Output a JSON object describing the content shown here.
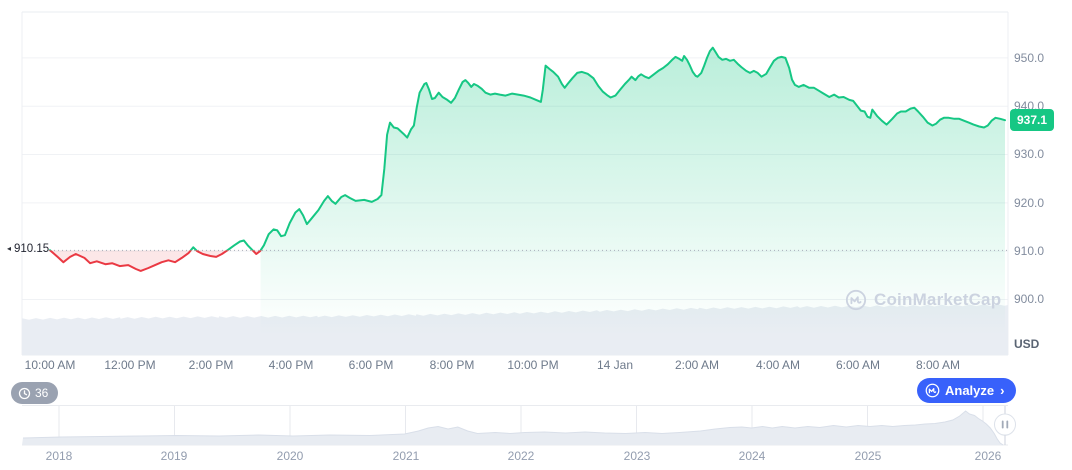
{
  "y_axis": {
    "ticks": [
      "950.0",
      "940.0",
      "930.0",
      "920.0",
      "910.0",
      "900.0"
    ],
    "unit_label": "USD",
    "current_price_label": "937.1",
    "open_price_label": "910.15"
  },
  "x_axis": {
    "ticks": [
      "10:00 AM",
      "12:00 PM",
      "2:00 PM",
      "4:00 PM",
      "6:00 PM",
      "8:00 PM",
      "10:00 PM",
      "14 Jan",
      "2:00 AM",
      "4:00 AM",
      "6:00 AM",
      "8:00 AM"
    ]
  },
  "navigator": {
    "years": [
      "2018",
      "2019",
      "2020",
      "2021",
      "2022",
      "2023",
      "2024",
      "2025",
      "2026"
    ]
  },
  "toolbar": {
    "history_count": "36",
    "analyze_label": "Analyze"
  },
  "watermark": {
    "text": "CoinMarketCap"
  },
  "icons": {
    "open_marker": "◂",
    "analyze_chevron": "›",
    "history_icon_name": "history-clock-icon",
    "cmc_logo_name": "coinmarketcap-logo-icon",
    "handle_icon_name": "drag-handle-icon"
  },
  "colors": {
    "up": "#16c784",
    "down": "#ea3943",
    "accent_blue": "#3861fb",
    "badge_gray": "#818b9e"
  },
  "chart_data": {
    "type": "line",
    "title": "",
    "ylabel": "USD",
    "ylim": [
      888.5,
      959.5
    ],
    "y_tick_values": [
      950,
      940,
      930,
      920,
      910,
      900
    ],
    "open_price": 910.15,
    "current_price": 937.1,
    "grid": "horizontal-only",
    "legend": "none",
    "x_ticks": [
      "10:00 AM",
      "12:00 PM",
      "2:00 PM",
      "4:00 PM",
      "6:00 PM",
      "8:00 PM",
      "10:00 PM",
      "14 Jan",
      "2:00 AM",
      "4:00 AM",
      "6:00 AM",
      "8:00 AM"
    ],
    "x_unit": "fraction_of_visible_24h_range",
    "series": [
      {
        "name": "price_usd",
        "points": [
          [
            0.0,
            910.2
          ],
          [
            0.008,
            908.8
          ],
          [
            0.014,
            907.7
          ],
          [
            0.021,
            908.8
          ],
          [
            0.027,
            909.4
          ],
          [
            0.036,
            908.6
          ],
          [
            0.042,
            907.5
          ],
          [
            0.049,
            907.9
          ],
          [
            0.058,
            907.3
          ],
          [
            0.065,
            907.5
          ],
          [
            0.073,
            906.9
          ],
          [
            0.082,
            907.1
          ],
          [
            0.09,
            906.3
          ],
          [
            0.095,
            905.9
          ],
          [
            0.103,
            906.5
          ],
          [
            0.11,
            907.1
          ],
          [
            0.117,
            907.7
          ],
          [
            0.124,
            908.1
          ],
          [
            0.131,
            907.7
          ],
          [
            0.138,
            908.6
          ],
          [
            0.145,
            909.6
          ],
          [
            0.15,
            910.8
          ],
          [
            0.154,
            910.0
          ],
          [
            0.16,
            909.4
          ],
          [
            0.168,
            909.0
          ],
          [
            0.174,
            908.8
          ],
          [
            0.18,
            909.4
          ],
          [
            0.186,
            910.2
          ],
          [
            0.193,
            911.2
          ],
          [
            0.199,
            912.0
          ],
          [
            0.203,
            912.2
          ],
          [
            0.207,
            911.2
          ],
          [
            0.212,
            910.2
          ],
          [
            0.216,
            909.4
          ],
          [
            0.22,
            910.0
          ],
          [
            0.224,
            911.2
          ],
          [
            0.229,
            913.5
          ],
          [
            0.234,
            914.5
          ],
          [
            0.238,
            914.3
          ],
          [
            0.242,
            913.1
          ],
          [
            0.246,
            913.3
          ],
          [
            0.251,
            915.8
          ],
          [
            0.257,
            918.0
          ],
          [
            0.261,
            918.7
          ],
          [
            0.265,
            917.4
          ],
          [
            0.269,
            915.6
          ],
          [
            0.274,
            916.8
          ],
          [
            0.281,
            918.5
          ],
          [
            0.287,
            920.4
          ],
          [
            0.291,
            921.4
          ],
          [
            0.295,
            920.4
          ],
          [
            0.299,
            919.8
          ],
          [
            0.305,
            921.2
          ],
          [
            0.309,
            921.6
          ],
          [
            0.314,
            921.0
          ],
          [
            0.32,
            920.4
          ],
          [
            0.329,
            920.6
          ],
          [
            0.337,
            920.2
          ],
          [
            0.343,
            920.8
          ],
          [
            0.347,
            921.6
          ],
          [
            0.35,
            927.0
          ],
          [
            0.353,
            934.1
          ],
          [
            0.356,
            936.6
          ],
          [
            0.36,
            935.6
          ],
          [
            0.364,
            935.4
          ],
          [
            0.37,
            934.3
          ],
          [
            0.374,
            933.5
          ],
          [
            0.378,
            935.2
          ],
          [
            0.381,
            936.0
          ],
          [
            0.384,
            939.7
          ],
          [
            0.387,
            942.8
          ],
          [
            0.392,
            944.6
          ],
          [
            0.394,
            944.8
          ],
          [
            0.397,
            943.4
          ],
          [
            0.4,
            941.5
          ],
          [
            0.403,
            941.7
          ],
          [
            0.407,
            942.8
          ],
          [
            0.411,
            941.9
          ],
          [
            0.416,
            941.3
          ],
          [
            0.42,
            940.7
          ],
          [
            0.424,
            941.7
          ],
          [
            0.428,
            943.4
          ],
          [
            0.432,
            945.0
          ],
          [
            0.435,
            945.4
          ],
          [
            0.438,
            944.8
          ],
          [
            0.441,
            944.0
          ],
          [
            0.444,
            944.6
          ],
          [
            0.448,
            944.2
          ],
          [
            0.452,
            943.6
          ],
          [
            0.456,
            942.8
          ],
          [
            0.461,
            942.4
          ],
          [
            0.466,
            942.6
          ],
          [
            0.471,
            942.4
          ],
          [
            0.477,
            942.2
          ],
          [
            0.484,
            942.6
          ],
          [
            0.49,
            942.4
          ],
          [
            0.496,
            942.2
          ],
          [
            0.503,
            941.8
          ],
          [
            0.509,
            941.3
          ],
          [
            0.514,
            940.9
          ],
          [
            0.516,
            943.4
          ],
          [
            0.519,
            948.4
          ],
          [
            0.523,
            947.7
          ],
          [
            0.527,
            947.1
          ],
          [
            0.532,
            946.1
          ],
          [
            0.536,
            944.6
          ],
          [
            0.539,
            943.8
          ],
          [
            0.542,
            944.6
          ],
          [
            0.547,
            945.8
          ],
          [
            0.552,
            946.9
          ],
          [
            0.557,
            947.1
          ],
          [
            0.563,
            946.7
          ],
          [
            0.569,
            945.8
          ],
          [
            0.574,
            944.2
          ],
          [
            0.579,
            943.0
          ],
          [
            0.584,
            942.2
          ],
          [
            0.587,
            941.8
          ],
          [
            0.592,
            942.2
          ],
          [
            0.597,
            943.4
          ],
          [
            0.602,
            944.6
          ],
          [
            0.606,
            945.4
          ],
          [
            0.609,
            946.1
          ],
          [
            0.613,
            945.4
          ],
          [
            0.616,
            946.2
          ],
          [
            0.619,
            946.6
          ],
          [
            0.623,
            946.1
          ],
          [
            0.627,
            945.8
          ],
          [
            0.631,
            946.4
          ],
          [
            0.637,
            947.3
          ],
          [
            0.642,
            947.9
          ],
          [
            0.647,
            948.7
          ],
          [
            0.651,
            949.5
          ],
          [
            0.655,
            950.2
          ],
          [
            0.659,
            949.8
          ],
          [
            0.662,
            949.4
          ],
          [
            0.664,
            950.4
          ],
          [
            0.667,
            949.6
          ],
          [
            0.67,
            948.4
          ],
          [
            0.673,
            947.1
          ],
          [
            0.676,
            946.3
          ],
          [
            0.678,
            946.1
          ],
          [
            0.682,
            946.9
          ],
          [
            0.685,
            948.4
          ],
          [
            0.688,
            950.0
          ],
          [
            0.691,
            951.4
          ],
          [
            0.694,
            952.1
          ],
          [
            0.697,
            951.2
          ],
          [
            0.7,
            950.2
          ],
          [
            0.704,
            949.6
          ],
          [
            0.708,
            949.8
          ],
          [
            0.712,
            949.4
          ],
          [
            0.716,
            949.6
          ],
          [
            0.72,
            948.8
          ],
          [
            0.724,
            948.1
          ],
          [
            0.729,
            947.3
          ],
          [
            0.733,
            946.9
          ],
          [
            0.737,
            947.3
          ],
          [
            0.741,
            946.9
          ],
          [
            0.745,
            946.1
          ],
          [
            0.75,
            946.7
          ],
          [
            0.754,
            948.1
          ],
          [
            0.758,
            949.4
          ],
          [
            0.762,
            950.0
          ],
          [
            0.766,
            950.2
          ],
          [
            0.77,
            950.0
          ],
          [
            0.774,
            947.9
          ],
          [
            0.777,
            945.5
          ],
          [
            0.78,
            944.4
          ],
          [
            0.784,
            944.0
          ],
          [
            0.789,
            944.4
          ],
          [
            0.795,
            943.8
          ],
          [
            0.8,
            943.8
          ],
          [
            0.805,
            943.2
          ],
          [
            0.81,
            942.6
          ],
          [
            0.816,
            941.9
          ],
          [
            0.821,
            942.4
          ],
          [
            0.826,
            941.8
          ],
          [
            0.831,
            941.9
          ],
          [
            0.837,
            941.3
          ],
          [
            0.841,
            941.1
          ],
          [
            0.845,
            940.1
          ],
          [
            0.849,
            939.1
          ],
          [
            0.853,
            938.9
          ],
          [
            0.856,
            937.8
          ],
          [
            0.859,
            937.6
          ],
          [
            0.861,
            939.3
          ],
          [
            0.866,
            938.0
          ],
          [
            0.871,
            937.0
          ],
          [
            0.876,
            936.2
          ],
          [
            0.882,
            937.4
          ],
          [
            0.887,
            938.5
          ],
          [
            0.891,
            938.9
          ],
          [
            0.896,
            938.9
          ],
          [
            0.901,
            939.5
          ],
          [
            0.905,
            939.7
          ],
          [
            0.909,
            938.9
          ],
          [
            0.914,
            937.8
          ],
          [
            0.919,
            936.6
          ],
          [
            0.924,
            936.0
          ],
          [
            0.928,
            936.4
          ],
          [
            0.932,
            937.2
          ],
          [
            0.936,
            937.6
          ],
          [
            0.941,
            937.6
          ],
          [
            0.947,
            937.4
          ],
          [
            0.952,
            937.4
          ],
          [
            0.957,
            937.0
          ],
          [
            0.962,
            936.6
          ],
          [
            0.967,
            936.2
          ],
          [
            0.973,
            935.8
          ],
          [
            0.978,
            935.6
          ],
          [
            0.982,
            936.0
          ],
          [
            0.986,
            937.0
          ],
          [
            0.99,
            937.6
          ],
          [
            0.995,
            937.4
          ],
          [
            1.0,
            937.1
          ]
        ]
      }
    ],
    "navigator_series": {
      "years": [
        "2018",
        "2019",
        "2020",
        "2021",
        "2022",
        "2023",
        "2024",
        "2025",
        "2026"
      ],
      "value_unit": "normalized_height_px",
      "points": [
        [
          0.001,
          7
        ],
        [
          0.04,
          8
        ],
        [
          0.08,
          8.5
        ],
        [
          0.12,
          9
        ],
        [
          0.157,
          9.5
        ],
        [
          0.2,
          9
        ],
        [
          0.24,
          10
        ],
        [
          0.275,
          9
        ],
        [
          0.312,
          10
        ],
        [
          0.353,
          9.5
        ],
        [
          0.388,
          11
        ],
        [
          0.402,
          14
        ],
        [
          0.412,
          17
        ],
        [
          0.422,
          18.5
        ],
        [
          0.432,
          16
        ],
        [
          0.442,
          18
        ],
        [
          0.452,
          14
        ],
        [
          0.462,
          11.5
        ],
        [
          0.48,
          12.5
        ],
        [
          0.495,
          11.5
        ],
        [
          0.51,
          12.5
        ],
        [
          0.53,
          13
        ],
        [
          0.551,
          12
        ],
        [
          0.571,
          13
        ],
        [
          0.591,
          12
        ],
        [
          0.612,
          11.5
        ],
        [
          0.632,
          12.5
        ],
        [
          0.649,
          11.5
        ],
        [
          0.667,
          12.5
        ],
        [
          0.688,
          14
        ],
        [
          0.703,
          16
        ],
        [
          0.718,
          17.5
        ],
        [
          0.73,
          18
        ],
        [
          0.74,
          17
        ],
        [
          0.751,
          18.5
        ],
        [
          0.761,
          17
        ],
        [
          0.771,
          18.5
        ],
        [
          0.784,
          17
        ],
        [
          0.797,
          18.5
        ],
        [
          0.809,
          17.5
        ],
        [
          0.823,
          19.5
        ],
        [
          0.836,
          18
        ],
        [
          0.848,
          19.5
        ],
        [
          0.86,
          18.5
        ],
        [
          0.872,
          19.5
        ],
        [
          0.883,
          18.5
        ],
        [
          0.895,
          19.5
        ],
        [
          0.906,
          20
        ],
        [
          0.916,
          21
        ],
        [
          0.926,
          21.5
        ],
        [
          0.936,
          23
        ],
        [
          0.944,
          25
        ],
        [
          0.951,
          29
        ],
        [
          0.957,
          34
        ],
        [
          0.961,
          31
        ],
        [
          0.966,
          29.5
        ],
        [
          0.97,
          26.5
        ],
        [
          0.974,
          24
        ],
        [
          0.978,
          21
        ],
        [
          0.982,
          17
        ],
        [
          0.986,
          11.5
        ],
        [
          0.989,
          6
        ],
        [
          0.992,
          2
        ],
        [
          0.995,
          0
        ]
      ]
    },
    "volume_profile": [
      [
        0,
        36
      ],
      [
        0.1,
        37
      ],
      [
        0.2,
        38
      ],
      [
        0.3,
        38.5
      ],
      [
        0.4,
        40
      ],
      [
        0.505,
        42
      ],
      [
        0.586,
        44
      ],
      [
        0.687,
        46.5
      ],
      [
        0.789,
        48
      ],
      [
        0.89,
        49
      ],
      [
        1,
        50
      ]
    ]
  }
}
